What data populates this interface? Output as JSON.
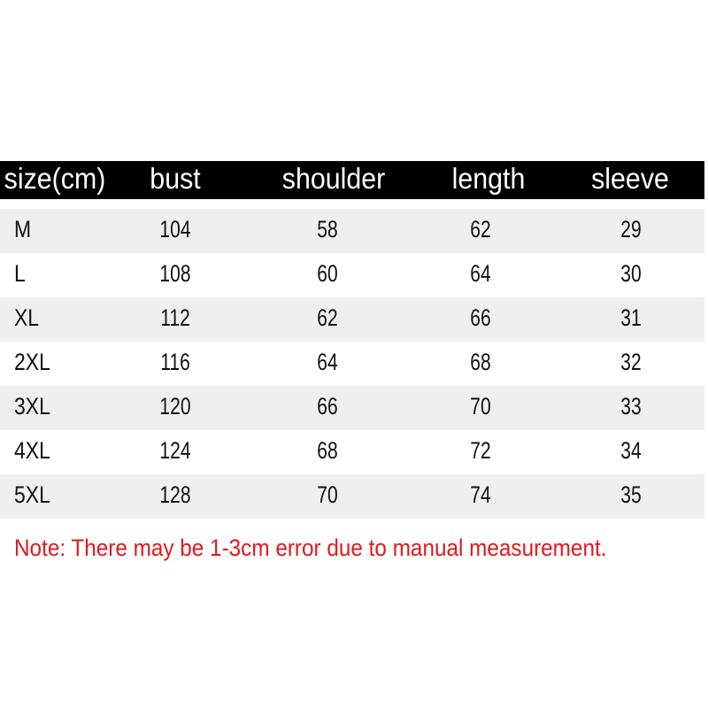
{
  "table": {
    "headers": [
      "size(cm)",
      "bust",
      "shoulder",
      "length",
      "sleeve"
    ],
    "rows": [
      [
        "M",
        "104",
        "58",
        "62",
        "29"
      ],
      [
        "L",
        "108",
        "60",
        "64",
        "30"
      ],
      [
        "XL",
        "112",
        "62",
        "66",
        "31"
      ],
      [
        "2XL",
        "116",
        "64",
        "68",
        "32"
      ],
      [
        "3XL",
        "120",
        "66",
        "70",
        "33"
      ],
      [
        "4XL",
        "124",
        "68",
        "72",
        "34"
      ],
      [
        "5XL",
        "128",
        "70",
        "74",
        "35"
      ]
    ]
  },
  "note": "Note: There may be 1-3cm error due to manual measurement.",
  "colors": {
    "header_bg": "#000000",
    "row_alt": "#efefef",
    "note": "#e0191e"
  }
}
